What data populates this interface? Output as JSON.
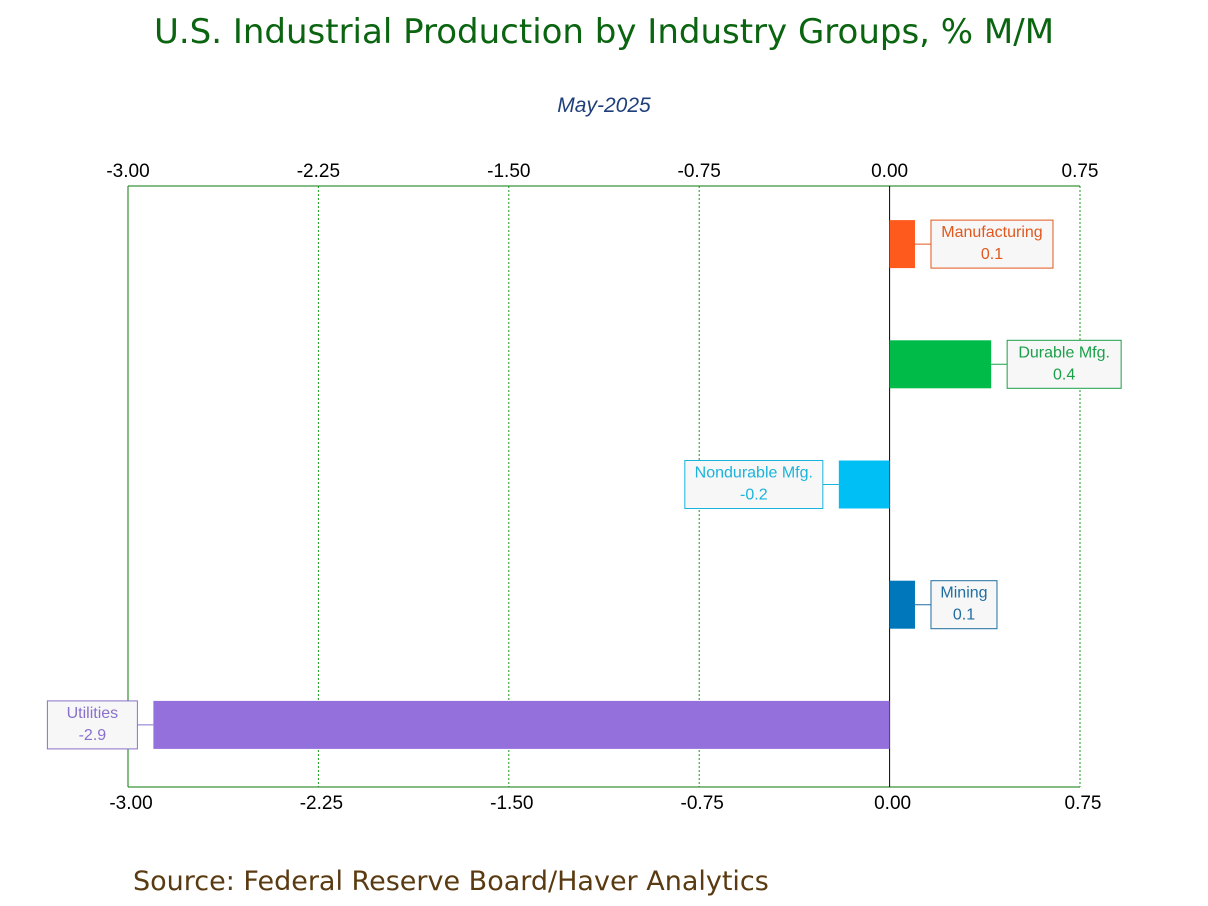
{
  "title": "U.S. Industrial Production by Industry Groups, % M/M",
  "subtitle": "May-2025",
  "source": "Source:  Federal Reserve Board/Haver Analytics",
  "chart_data": {
    "type": "bar",
    "orientation": "horizontal",
    "categories": [
      "Manufacturing",
      "Durable Mfg.",
      "Nondurable Mfg.",
      "Mining",
      "Utilities"
    ],
    "values": [
      0.1,
      0.4,
      -0.2,
      0.1,
      -2.9
    ],
    "value_labels": [
      "0.1",
      "0.4",
      "-0.2",
      "0.1",
      "-2.9"
    ],
    "colors": [
      "#ff5a1e",
      "#00bb48",
      "#00bff5",
      "#0077bb",
      "#9370db"
    ],
    "label_colors": [
      "#e0581e",
      "#1aa04a",
      "#19b4dc",
      "#1f6ea0",
      "#8a70cc"
    ],
    "xlim": [
      -3.0,
      0.75
    ],
    "ticks": [
      -3.0,
      -2.25,
      -1.5,
      -0.75,
      0.0,
      0.75
    ],
    "tick_labels": [
      "-3.00",
      "-2.25",
      "-1.50",
      "-0.75",
      "0.00",
      "0.75"
    ],
    "grid": true,
    "grid_color": "#1a9a1a",
    "frame_color": "#0a7a0a"
  }
}
